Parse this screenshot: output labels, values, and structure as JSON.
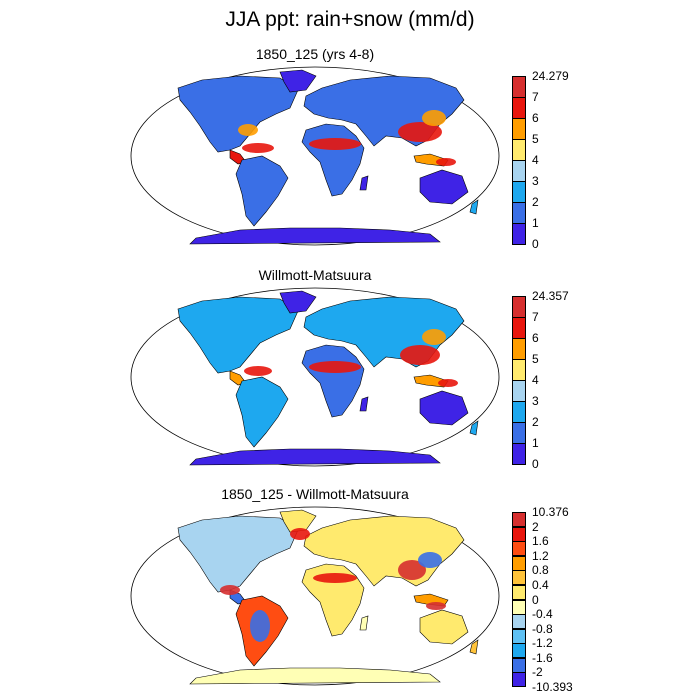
{
  "title": "JJA ppt: rain+snow (mm/d)",
  "colors": {
    "ocean": "#ffffff",
    "outline": "#000000",
    "land_low_abs": "#3f23e6",
    "land_low_diff": "#a8d4f0"
  },
  "panels": [
    {
      "title": "1850_125 (yrs 4-8)",
      "colorbar": {
        "labels": [
          "24.279",
          "7",
          "6",
          "5",
          "4",
          "3",
          "2",
          "1",
          "0"
        ],
        "colors": [
          "#d62f2f",
          "#e8160d",
          "#ff9d00",
          "#ffea6e",
          "#a8d4f0",
          "#1ea8ef",
          "#3a6fe6",
          "#3f23e6"
        ]
      }
    },
    {
      "title": "Willmott-Matsuura",
      "colorbar": {
        "labels": [
          "24.357",
          "7",
          "6",
          "5",
          "4",
          "3",
          "2",
          "1",
          "0"
        ],
        "colors": [
          "#d62f2f",
          "#e8160d",
          "#ff9d00",
          "#ffea6e",
          "#a8d4f0",
          "#1ea8ef",
          "#3a6fe6",
          "#3f23e6"
        ]
      }
    },
    {
      "title": "1850_125 - Willmott-Matsuura",
      "colorbar": {
        "labels": [
          "10.376",
          "2",
          "1.6",
          "1.2",
          "0.8",
          "0.4",
          "0",
          "-0.4",
          "-0.8",
          "-1.2",
          "-1.6",
          "-2",
          "-10.393"
        ],
        "colors": [
          "#d62f2f",
          "#e8160d",
          "#ff4d12",
          "#ff9d00",
          "#ffc33a",
          "#ffea6e",
          "#ffffb5",
          "#a8d4f0",
          "#5fc1f4",
          "#1ea8ef",
          "#3a6fe6",
          "#3f23e6"
        ]
      }
    }
  ]
}
